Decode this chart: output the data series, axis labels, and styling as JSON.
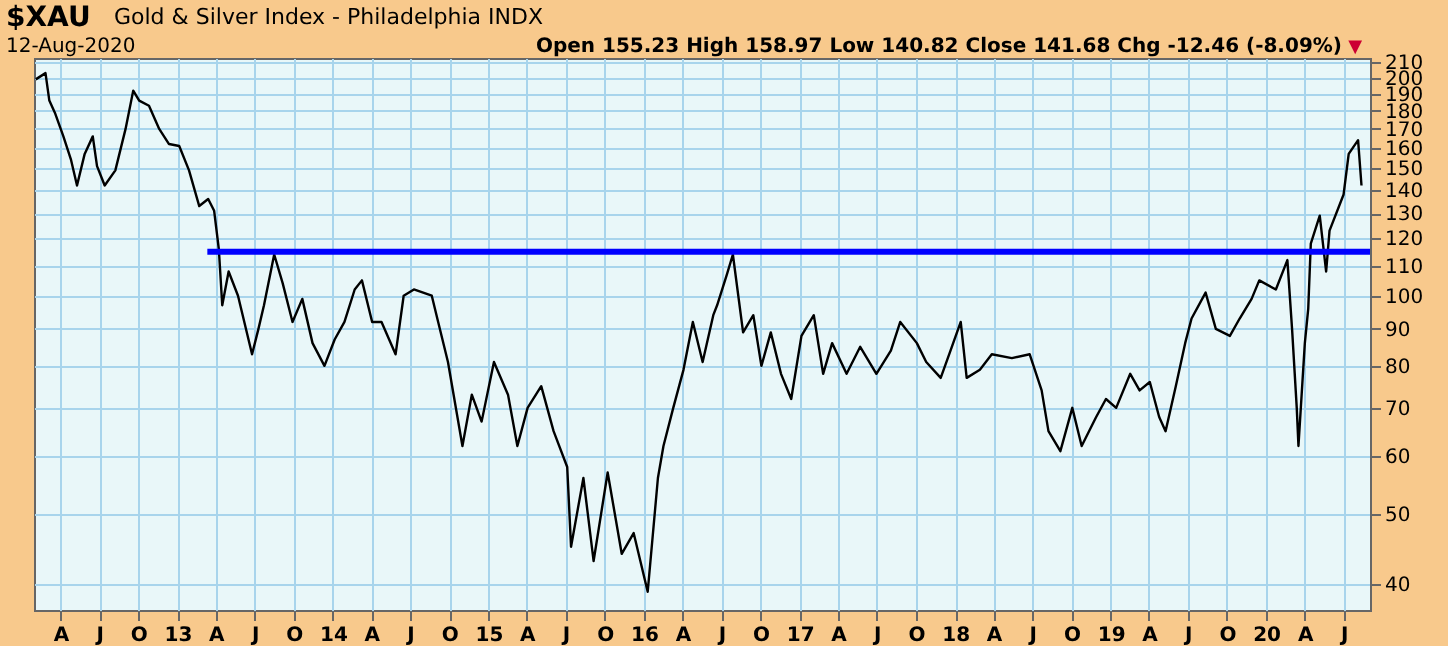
{
  "chart_data": {
    "type": "line",
    "title": "$XAU",
    "subtitle": "Gold & Silver Index - Philadelphia INDX",
    "annotations": [
      "12-Aug-2020",
      "Open 155.23  High 158.97  Low 140.82  Close 141.68  Chg -12.46 (-8.09%)",
      "▼"
    ],
    "log": "y",
    "grid": true,
    "legend": false,
    "marker": "none",
    "line_style": "solid",
    "xlim": [
      "2012-01-30",
      "2020-09-01"
    ],
    "ylim": [
      36.8,
      213
    ],
    "yticks": [
      40,
      50,
      60,
      70,
      80,
      90,
      100,
      110,
      120,
      130,
      140,
      150,
      160,
      170,
      180,
      190,
      200,
      210
    ],
    "xticks": [
      {
        "value": "2012-04-01",
        "label": "A"
      },
      {
        "value": "2012-07-01",
        "label": "J"
      },
      {
        "value": "2012-10-01",
        "label": "O"
      },
      {
        "value": "2013-01-01",
        "label": "13"
      },
      {
        "value": "2013-04-01",
        "label": "A"
      },
      {
        "value": "2013-07-01",
        "label": "J"
      },
      {
        "value": "2013-10-01",
        "label": "O"
      },
      {
        "value": "2014-01-01",
        "label": "14"
      },
      {
        "value": "2014-04-01",
        "label": "A"
      },
      {
        "value": "2014-07-01",
        "label": "J"
      },
      {
        "value": "2014-10-01",
        "label": "O"
      },
      {
        "value": "2015-01-01",
        "label": "15"
      },
      {
        "value": "2015-04-01",
        "label": "A"
      },
      {
        "value": "2015-07-01",
        "label": "J"
      },
      {
        "value": "2015-10-01",
        "label": "O"
      },
      {
        "value": "2016-01-01",
        "label": "16"
      },
      {
        "value": "2016-04-01",
        "label": "A"
      },
      {
        "value": "2016-07-01",
        "label": "J"
      },
      {
        "value": "2016-10-01",
        "label": "O"
      },
      {
        "value": "2017-01-01",
        "label": "17"
      },
      {
        "value": "2017-04-01",
        "label": "A"
      },
      {
        "value": "2017-07-01",
        "label": "J"
      },
      {
        "value": "2017-10-01",
        "label": "O"
      },
      {
        "value": "2018-01-01",
        "label": "18"
      },
      {
        "value": "2018-04-01",
        "label": "A"
      },
      {
        "value": "2018-07-01",
        "label": "J"
      },
      {
        "value": "2018-10-01",
        "label": "O"
      },
      {
        "value": "2019-01-01",
        "label": "19"
      },
      {
        "value": "2019-04-01",
        "label": "A"
      },
      {
        "value": "2019-07-01",
        "label": "J"
      },
      {
        "value": "2019-10-01",
        "label": "O"
      },
      {
        "value": "2020-01-01",
        "label": "20"
      },
      {
        "value": "2020-04-01",
        "label": "A"
      },
      {
        "value": "2020-07-01",
        "label": "J"
      }
    ],
    "series": [
      {
        "color": "#000000",
        "x": [
          "2012-02-03",
          "2012-02-26",
          "2012-03-06",
          "2012-03-19",
          "2012-04-08",
          "2012-04-26",
          "2012-05-10",
          "2012-05-28",
          "2012-06-16",
          "2012-06-26",
          "2012-07-14",
          "2012-08-08",
          "2012-09-01",
          "2012-09-19",
          "2012-10-03",
          "2012-10-26",
          "2012-11-19",
          "2012-12-12",
          "2013-01-05",
          "2013-01-28",
          "2013-02-21",
          "2013-03-14",
          "2013-03-28",
          "2013-04-08",
          "2013-04-16",
          "2013-05-01",
          "2013-05-23",
          "2013-06-25",
          "2013-07-10",
          "2013-07-23",
          "2013-08-16",
          "2013-09-05",
          "2013-09-28",
          "2013-10-21",
          "2013-11-14",
          "2013-12-12",
          "2014-01-05",
          "2014-01-28",
          "2014-02-21",
          "2014-03-10",
          "2014-04-03",
          "2014-04-25",
          "2014-05-28",
          "2014-06-16",
          "2014-07-10",
          "2014-08-21",
          "2014-09-05",
          "2014-09-28",
          "2014-11-01",
          "2014-11-23",
          "2014-12-16",
          "2015-01-14",
          "2015-02-16",
          "2015-03-10",
          "2015-04-03",
          "2015-05-05",
          "2015-06-03",
          "2015-07-05",
          "2015-07-14",
          "2015-08-12",
          "2015-09-05",
          "2015-10-08",
          "2015-11-10",
          "2015-12-08",
          "2016-01-10",
          "2016-02-03",
          "2016-02-16",
          "2016-03-10",
          "2016-04-03",
          "2016-04-25",
          "2016-05-18",
          "2016-06-12",
          "2016-06-21",
          "2016-07-14",
          "2016-07-28",
          "2016-08-21",
          "2016-09-14",
          "2016-10-03",
          "2016-10-25",
          "2016-11-18",
          "2016-12-12",
          "2017-01-05",
          "2017-02-03",
          "2017-02-25",
          "2017-03-18",
          "2017-04-21",
          "2017-05-23",
          "2017-06-30",
          "2017-08-03",
          "2017-08-25",
          "2017-10-03",
          "2017-10-25",
          "2017-11-28",
          "2017-12-21",
          "2018-01-14",
          "2018-01-28",
          "2018-02-28",
          "2018-03-28",
          "2018-05-14",
          "2018-06-25",
          "2018-07-23",
          "2018-08-08",
          "2018-09-05",
          "2018-10-03",
          "2018-10-25",
          "2018-11-28",
          "2018-12-21",
          "2019-01-14",
          "2019-02-16",
          "2019-03-10",
          "2019-04-03",
          "2019-04-25",
          "2019-05-10",
          "2019-06-03",
          "2019-06-25",
          "2019-07-10",
          "2019-08-12",
          "2019-09-05",
          "2019-10-08",
          "2019-10-31",
          "2019-11-28",
          "2019-12-16",
          "2020-01-24",
          "2020-02-20",
          "2020-03-02",
          "2020-03-13",
          "2020-03-17",
          "2020-04-01",
          "2020-04-09",
          "2020-04-15",
          "2020-05-06",
          "2020-05-21",
          "2020-05-29",
          "2020-07-01",
          "2020-07-13",
          "2020-08-04",
          "2020-08-12"
        ],
        "values": [
          199,
          203,
          186,
          179,
          166,
          154,
          142,
          157,
          166,
          151,
          142,
          149,
          170,
          192,
          186,
          183,
          170,
          162,
          161,
          149,
          133,
          136,
          131,
          116,
          97,
          108,
          100,
          83,
          90,
          97,
          114,
          104,
          92,
          99,
          86,
          80,
          87,
          92,
          102,
          105,
          92,
          92,
          83,
          100,
          102,
          100,
          92,
          81,
          62,
          73,
          67,
          81,
          73,
          62,
          70,
          75,
          65,
          58,
          45,
          56,
          43,
          57,
          44,
          47,
          39,
          56,
          62,
          70,
          79,
          92,
          81,
          94,
          97,
          107,
          114,
          89,
          94,
          80,
          89,
          78,
          72,
          88,
          94,
          78,
          86,
          78,
          85,
          78,
          84,
          92,
          86,
          81,
          77,
          84,
          92,
          77,
          79,
          83,
          82,
          83,
          74,
          65,
          61,
          70,
          62,
          68,
          72,
          70,
          78,
          74,
          76,
          68,
          65,
          75,
          86,
          93,
          101,
          90,
          88,
          93,
          99,
          105,
          102,
          112,
          90,
          70,
          62,
          86,
          96,
          118,
          129,
          108,
          123,
          138,
          157,
          164,
          142
        ]
      },
      {
        "type": "line",
        "color": "#0000ff",
        "x": [
          "2013-03-12",
          "2020-09-01"
        ],
        "values": [
          115,
          115
        ]
      }
    ]
  }
}
